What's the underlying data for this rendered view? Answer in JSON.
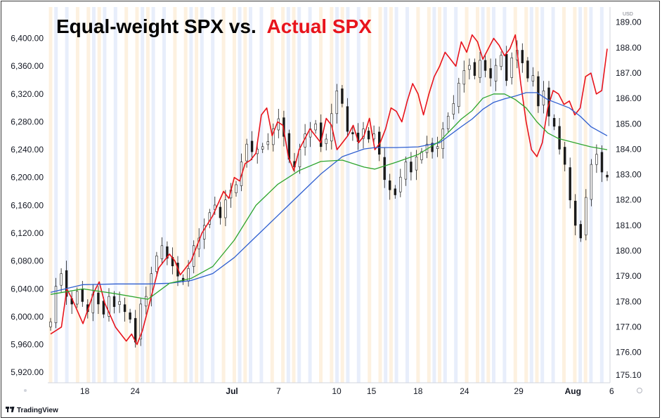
{
  "title": {
    "part1": "Equal-weight SPX vs.",
    "part2": "Actual SPX",
    "color_part1": "#000000",
    "color_part2": "#e8141c"
  },
  "branding": "TradingView",
  "currency_label": "USD",
  "chart_data": {
    "type": "line",
    "title": "Equal-weight SPX vs. Actual SPX",
    "x_ticks": [
      "18",
      "24",
      "Jul",
      "7",
      "10",
      "15",
      "18",
      "24",
      "29",
      "Aug",
      "6"
    ],
    "left_axis": {
      "ylim": [
        5905,
        6445
      ],
      "ticks": [
        "6,400.00",
        "6,360.00",
        "6,320.00",
        "6,280.00",
        "6,240.00",
        "6,200.00",
        "6,160.00",
        "6,120.00",
        "6,080.00",
        "6,040.00",
        "6,000.00",
        "5,960.00",
        "5,920.00"
      ]
    },
    "right_axis": {
      "ylim": [
        174.8,
        189.6
      ],
      "ticks": [
        "189.00",
        "188.00",
        "187.00",
        "186.00",
        "185.00",
        "184.00",
        "183.00",
        "182.00",
        "181.00",
        "180.00",
        "179.00",
        "178.00",
        "177.00",
        "176.00",
        "175.10"
      ]
    },
    "series": [
      {
        "color": "#e8141c",
        "axis": "left",
        "x": [
          0,
          2,
          3,
          4,
          6,
          8,
          9,
          10,
          12,
          14,
          15,
          16,
          17,
          18,
          20,
          22,
          23,
          24,
          26,
          28,
          30,
          32,
          33,
          34,
          35,
          36,
          37,
          38,
          39,
          40,
          41,
          42,
          43,
          44,
          45,
          46,
          47,
          48,
          49,
          50,
          51,
          52,
          53,
          54,
          55,
          56,
          57,
          58,
          59,
          60,
          61,
          62,
          63,
          64,
          65,
          66,
          67,
          68,
          69,
          70,
          71,
          72,
          73,
          74,
          75,
          76,
          77,
          78,
          79,
          80,
          81,
          82,
          83,
          84,
          85,
          86,
          87,
          88,
          89,
          90,
          91,
          92,
          93,
          94,
          95,
          96,
          97,
          98,
          99,
          100,
          101,
          102,
          103
        ],
        "values": [
          5975,
          5985,
          6040,
          6025,
          5990,
          6035,
          6050,
          6020,
          5985,
          5965,
          5975,
          5960,
          5980,
          6010,
          6070,
          6090,
          6080,
          6060,
          6080,
          6120,
          6145,
          6180,
          6170,
          6200,
          6195,
          6220,
          6225,
          6235,
          6290,
          6300,
          6260,
          6280,
          6275,
          6230,
          6210,
          6240,
          6255,
          6270,
          6260,
          6250,
          6285,
          6275,
          6240,
          6250,
          6260,
          6275,
          6250,
          6260,
          6285,
          6240,
          6250,
          6270,
          6300,
          6295,
          6280,
          6310,
          6335,
          6320,
          6290,
          6320,
          6345,
          6360,
          6380,
          6370,
          6360,
          6395,
          6380,
          6405,
          6395,
          6370,
          6385,
          6400,
          6390,
          6375,
          6385,
          6405,
          6335,
          6280,
          6240,
          6230,
          6250,
          6300,
          6325,
          6320,
          6305,
          6310,
          6290,
          6300,
          6345,
          6350,
          6320,
          6325,
          6385
        ]
      },
      {
        "color": "#2f5fd0",
        "axis": "left",
        "x": [
          0,
          6,
          12,
          18,
          22,
          26,
          30,
          34,
          38,
          42,
          46,
          50,
          54,
          58,
          60,
          64,
          68,
          72,
          76,
          78,
          80,
          82,
          84,
          86,
          88,
          90,
          92,
          94,
          96,
          98,
          100,
          103
        ],
        "values": [
          6035,
          6046,
          6047,
          6047,
          6048,
          6052,
          6062,
          6085,
          6115,
          6145,
          6175,
          6205,
          6230,
          6241,
          6243,
          6243,
          6244,
          6250,
          6273,
          6284,
          6298,
          6308,
          6313,
          6317,
          6322,
          6322,
          6312,
          6306,
          6300,
          6288,
          6273,
          6260
        ]
      },
      {
        "color": "#2ea52e",
        "axis": "left",
        "x": [
          0,
          6,
          12,
          18,
          22,
          26,
          30,
          34,
          38,
          42,
          46,
          50,
          54,
          58,
          60,
          64,
          68,
          72,
          76,
          78,
          80,
          82,
          84,
          86,
          88,
          90,
          92,
          94,
          96,
          98,
          100,
          103
        ],
        "values": [
          6032,
          6040,
          6033,
          6025,
          6048,
          6055,
          6072,
          6110,
          6160,
          6190,
          6210,
          6223,
          6225,
          6215,
          6212,
          6222,
          6233,
          6252,
          6284,
          6296,
          6314,
          6320,
          6320,
          6312,
          6300,
          6280,
          6264,
          6256,
          6252,
          6248,
          6244,
          6240
        ]
      }
    ],
    "candles_series": {
      "axis": "right",
      "approx_close": [
        177.2,
        178.6,
        179.1,
        178.2,
        177.9,
        178.4,
        178.0,
        177.6,
        178.3,
        177.9,
        177.5,
        178.2,
        177.8,
        178.0,
        177.6,
        177.3,
        176.4,
        177.9,
        178.2,
        179.1,
        179.8,
        180.2,
        179.7,
        179.4,
        179.0,
        178.8,
        179.3,
        180.2,
        180.5,
        181.0,
        181.5,
        181.8,
        181.3,
        182.0,
        182.4,
        182.6,
        183.5,
        184.2,
        183.9,
        184.0,
        184.1,
        184.3,
        184.8,
        185.2,
        184.5,
        183.6,
        183.3,
        184.0,
        184.6,
        184.8,
        185.0,
        184.1,
        184.4,
        185.4,
        186.3,
        185.8,
        184.7,
        184.6,
        184.3,
        184.8,
        184.4,
        184.6,
        183.8,
        182.8,
        182.4,
        182.2,
        182.9,
        183.5,
        183.1,
        183.7,
        183.9,
        184.2,
        183.9,
        184.1,
        184.8,
        185.3,
        185.8,
        186.6,
        187.1,
        187.3,
        186.9,
        187.5,
        187.1,
        186.8,
        187.3,
        187.7,
        186.7,
        187.6,
        187.9,
        187.4,
        186.8,
        186.9,
        185.7,
        186.3,
        185.3,
        184.9,
        184.0,
        183.4,
        182.0,
        181.0,
        180.5,
        182.1,
        183.4,
        183.8,
        183.1,
        182.9
      ]
    },
    "legend": "none",
    "grid": false
  }
}
